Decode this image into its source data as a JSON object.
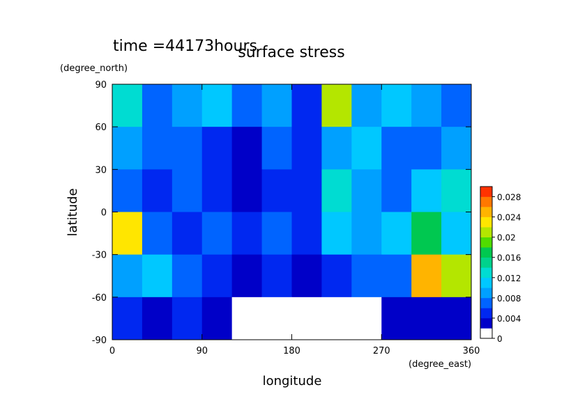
{
  "chart_data": {
    "type": "contour",
    "time_label": "time =44173hours",
    "title": "surface stress",
    "y_unit": "(degree_north)",
    "y_label": "latitude",
    "x_label": "longitude",
    "x_unit": "(degree_east)",
    "xlim": [
      0,
      360
    ],
    "xticks": [
      0,
      90,
      180,
      270,
      360
    ],
    "ylim": [
      -90,
      90
    ],
    "yticks": [
      -90,
      -60,
      -30,
      0,
      30,
      60,
      90
    ],
    "x": [
      15,
      45,
      75,
      105,
      135,
      165,
      195,
      225,
      255,
      285,
      315,
      345
    ],
    "y": [
      75,
      45,
      15,
      -15,
      -45,
      -75
    ],
    "z": [
      [
        0.012,
        0.006,
        0.008,
        0.01,
        0.006,
        0.008,
        0.004,
        0.02,
        0.008,
        0.01,
        0.008,
        0.006
      ],
      [
        0.008,
        0.006,
        0.006,
        0.004,
        0.002,
        0.006,
        0.004,
        0.008,
        0.01,
        0.006,
        0.006,
        0.008
      ],
      [
        0.006,
        0.004,
        0.006,
        0.004,
        0.002,
        0.004,
        0.004,
        0.012,
        0.008,
        0.006,
        0.01,
        0.012
      ],
      [
        0.022,
        0.006,
        0.004,
        0.006,
        0.004,
        0.006,
        0.004,
        0.01,
        0.008,
        0.01,
        0.016,
        0.01
      ],
      [
        0.008,
        0.01,
        0.006,
        0.004,
        0.002,
        0.004,
        0.002,
        0.004,
        0.006,
        0.006,
        0.024,
        0.02
      ],
      [
        0.004,
        0.002,
        0.004,
        0.002,
        0.001,
        0,
        0,
        0,
        0,
        0.002,
        0.002,
        0.002
      ]
    ],
    "colorbar": {
      "levels": [
        0,
        0.002,
        0.004,
        0.006,
        0.008,
        0.01,
        0.012,
        0.014,
        0.016,
        0.018,
        0.02,
        0.022,
        0.024,
        0.026,
        0.028,
        0.03
      ],
      "colors": [
        "#ffffff",
        "#0000c8",
        "#0028f0",
        "#0064ff",
        "#00a0ff",
        "#00c8ff",
        "#00dcd2",
        "#00d28c",
        "#00c850",
        "#50dc00",
        "#b4e600",
        "#ffe600",
        "#ffb400",
        "#ff7800",
        "#ff3200"
      ],
      "ticks": [
        0,
        0.004,
        0.008,
        0.012,
        0.016,
        0.02,
        0.024,
        0.028
      ]
    }
  }
}
